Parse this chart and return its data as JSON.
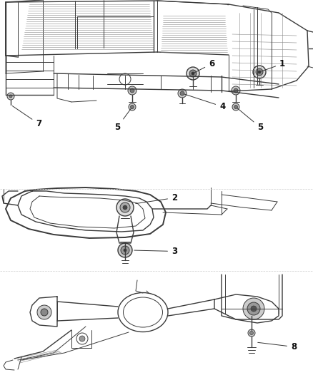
{
  "background_color": "#f5f5f5",
  "line_color": "#3a3a3a",
  "label_color": "#111111",
  "fig_width": 4.38,
  "fig_height": 5.33,
  "dpi": 100,
  "top_section": {
    "y_min": 0.545,
    "y_max": 1.0
  },
  "mid_section": {
    "y_min": 0.3,
    "y_max": 0.545
  },
  "bot_section": {
    "y_min": 0.0,
    "y_max": 0.3
  }
}
